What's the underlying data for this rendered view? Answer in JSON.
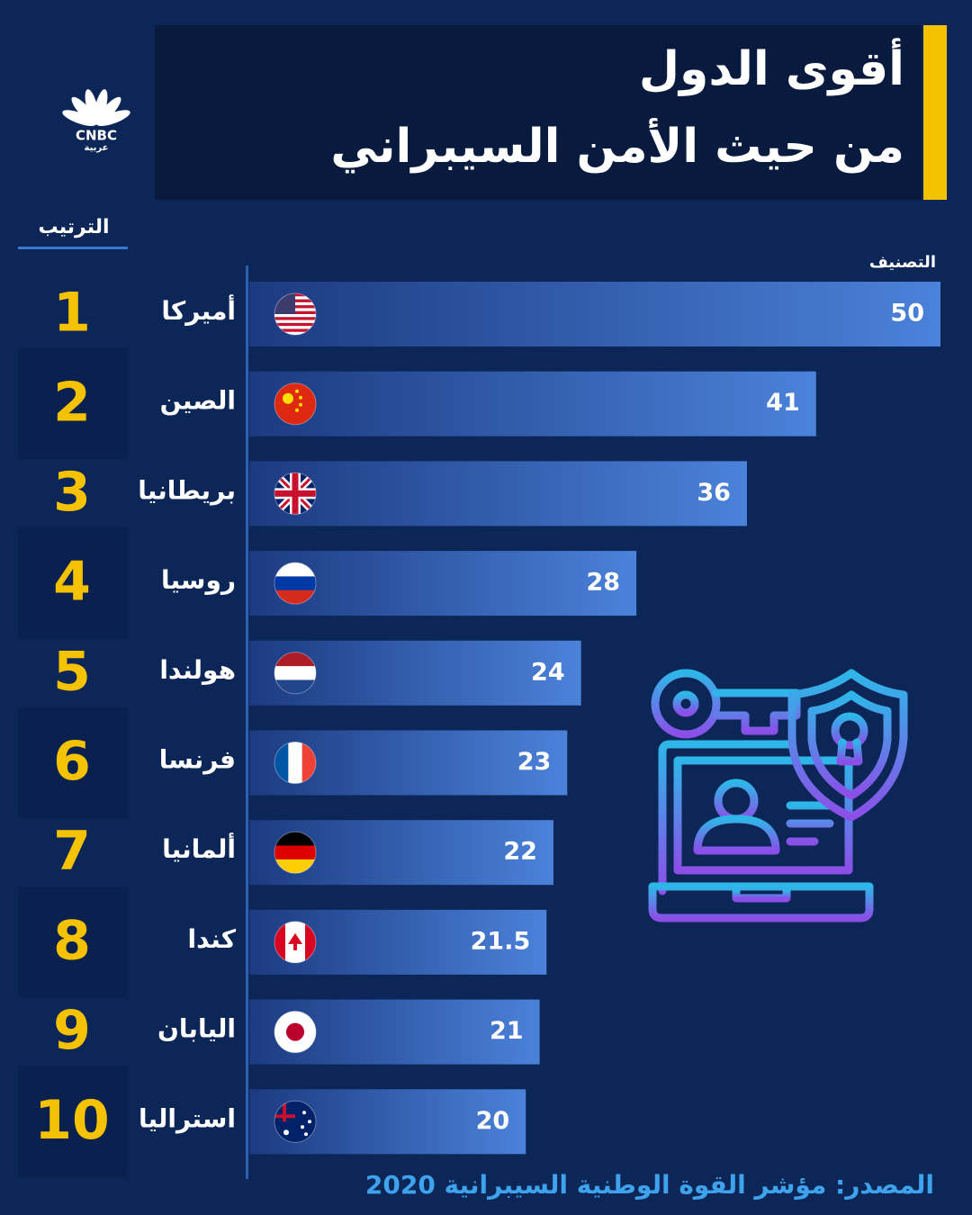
{
  "logo": {
    "brand": "CNBC",
    "sub": "عربية"
  },
  "header": {
    "title_lines": [
      "أقوى الدول",
      "من حيث الأمن السيبراني"
    ]
  },
  "chart_data": {
    "type": "bar",
    "orientation": "horizontal",
    "rank_label": "الترتيب",
    "value_label": "التصنيف",
    "ranks": [
      1,
      2,
      3,
      4,
      5,
      6,
      7,
      8,
      9,
      10
    ],
    "categories": [
      "أميركا",
      "الصين",
      "بريطانيا",
      "روسيا",
      "هولندا",
      "فرنسا",
      "ألمانيا",
      "كندا",
      "اليابان",
      "استراليا"
    ],
    "values": [
      50,
      41,
      36,
      28,
      24,
      23,
      22,
      21.5,
      21,
      20
    ],
    "xlim": [
      0,
      50
    ],
    "color_start": "#1c3a80",
    "color": "#4b82da"
  },
  "source": "المصدر: مؤشر القوة الوطنية السيبرانية 2020"
}
